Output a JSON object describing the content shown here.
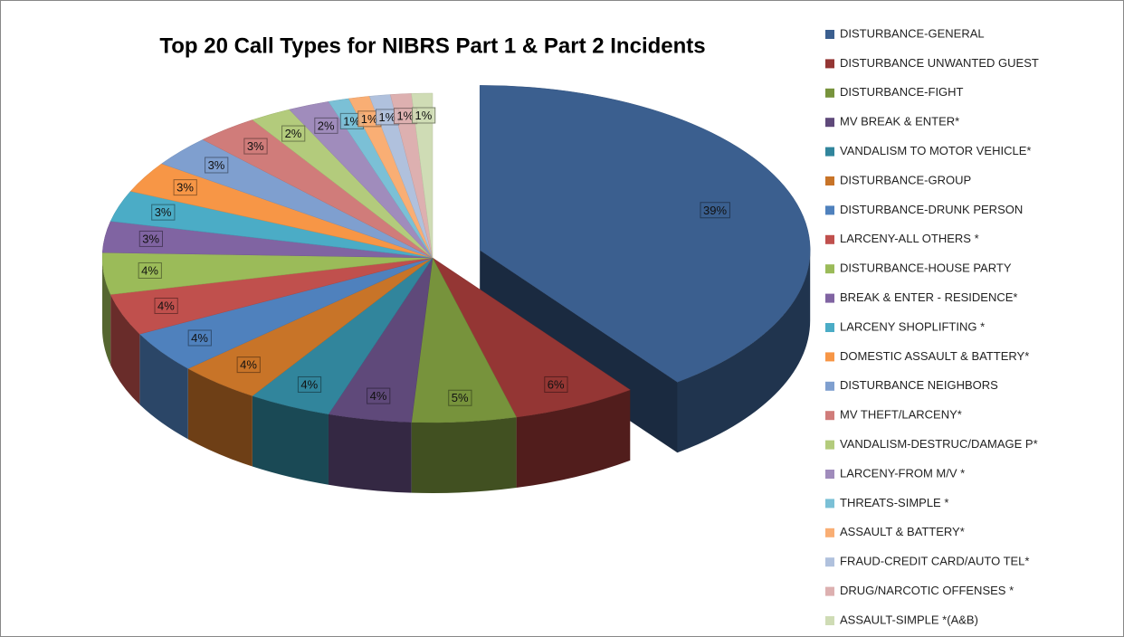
{
  "chart_data": {
    "type": "pie",
    "title": "Top 20 Call Types for NIBRS Part 1 & Part 2 Incidents",
    "categories": [
      "DISTURBANCE-GENERAL",
      "DISTURBANCE UNWANTED GUEST",
      "DISTURBANCE-FIGHT",
      "MV BREAK & ENTER*",
      "VANDALISM TO MOTOR VEHICLE*",
      "DISTURBANCE-GROUP",
      "DISTURBANCE-DRUNK PERSON",
      "LARCENY-ALL OTHERS *",
      "DISTURBANCE-HOUSE PARTY",
      "BREAK & ENTER - RESIDENCE*",
      "LARCENY SHOPLIFTING *",
      "DOMESTIC ASSAULT & BATTERY*",
      "DISTURBANCE NEIGHBORS",
      "MV THEFT/LARCENY*",
      "VANDALISM-DESTRUC/DAMAGE P*",
      "LARCENY-FROM M/V *",
      "THREATS-SIMPLE *",
      "ASSAULT & BATTERY*",
      "FRAUD-CREDIT CARD/AUTO TEL*",
      "DRUG/NARCOTIC OFFENSES *",
      "ASSAULT-SIMPLE *(A&B)"
    ],
    "values": [
      39,
      6,
      5,
      4,
      4,
      4,
      4,
      4,
      4,
      3,
      3,
      3,
      3,
      3,
      2,
      2,
      1,
      1,
      1,
      1,
      1
    ],
    "value_labels": [
      "39%",
      "6%",
      "5%",
      "4%",
      "4%",
      "4%",
      "4%",
      "4%",
      "4%",
      "3%",
      "3%",
      "3%",
      "3%",
      "3%",
      "2%",
      "2%",
      "1%",
      "1%",
      "1%",
      "1%",
      "1%"
    ],
    "colors": [
      "#3b5f8f",
      "#943634",
      "#77933c",
      "#5f497a",
      "#31859c",
      "#c87428",
      "#4f81bd",
      "#c0504d",
      "#9bbb59",
      "#8064a2",
      "#4bacc6",
      "#f79646",
      "#7f9fcf",
      "#d07c7a",
      "#b3cb7c",
      "#a08cbc",
      "#7bc0d6",
      "#f9ae74",
      "#b0c1dd",
      "#ddb0b0",
      "#cfdcb5"
    ],
    "legend": "right"
  }
}
